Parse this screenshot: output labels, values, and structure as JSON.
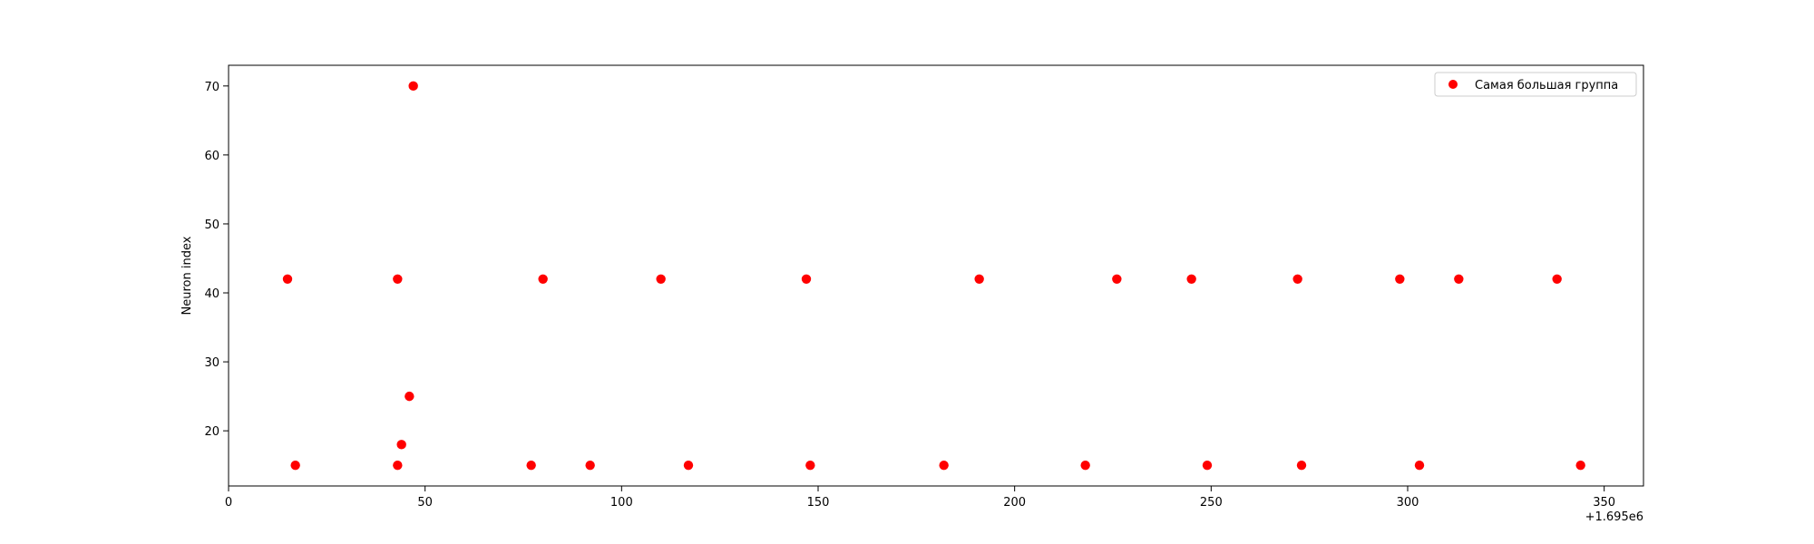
{
  "chart_data": {
    "type": "scatter",
    "title": "",
    "xlabel": "",
    "ylabel": "Neuron index",
    "x_offset_label": "+1.695e6",
    "xlim": [
      1695000,
      1695360
    ],
    "ylim": [
      12,
      73
    ],
    "xticks": [
      0,
      50,
      100,
      150,
      200,
      250,
      300,
      350
    ],
    "yticks": [
      20,
      30,
      40,
      50,
      60,
      70
    ],
    "grid": false,
    "legend_position": "top-right",
    "series": [
      {
        "name": "Самая большая группа",
        "color": "#ff0000",
        "points": [
          {
            "x": 1695015,
            "y": 42
          },
          {
            "x": 1695017,
            "y": 15
          },
          {
            "x": 1695043,
            "y": 42
          },
          {
            "x": 1695043,
            "y": 15
          },
          {
            "x": 1695044,
            "y": 18
          },
          {
            "x": 1695046,
            "y": 25
          },
          {
            "x": 1695047,
            "y": 70
          },
          {
            "x": 1695077,
            "y": 15
          },
          {
            "x": 1695080,
            "y": 42
          },
          {
            "x": 1695092,
            "y": 15
          },
          {
            "x": 1695110,
            "y": 42
          },
          {
            "x": 1695117,
            "y": 15
          },
          {
            "x": 1695147,
            "y": 42
          },
          {
            "x": 1695148,
            "y": 15
          },
          {
            "x": 1695182,
            "y": 15
          },
          {
            "x": 1695191,
            "y": 42
          },
          {
            "x": 1695218,
            "y": 15
          },
          {
            "x": 1695226,
            "y": 42
          },
          {
            "x": 1695245,
            "y": 42
          },
          {
            "x": 1695249,
            "y": 15
          },
          {
            "x": 1695272,
            "y": 42
          },
          {
            "x": 1695273,
            "y": 15
          },
          {
            "x": 1695298,
            "y": 42
          },
          {
            "x": 1695303,
            "y": 15
          },
          {
            "x": 1695313,
            "y": 42
          },
          {
            "x": 1695338,
            "y": 42
          },
          {
            "x": 1695344,
            "y": 15
          }
        ]
      }
    ]
  }
}
